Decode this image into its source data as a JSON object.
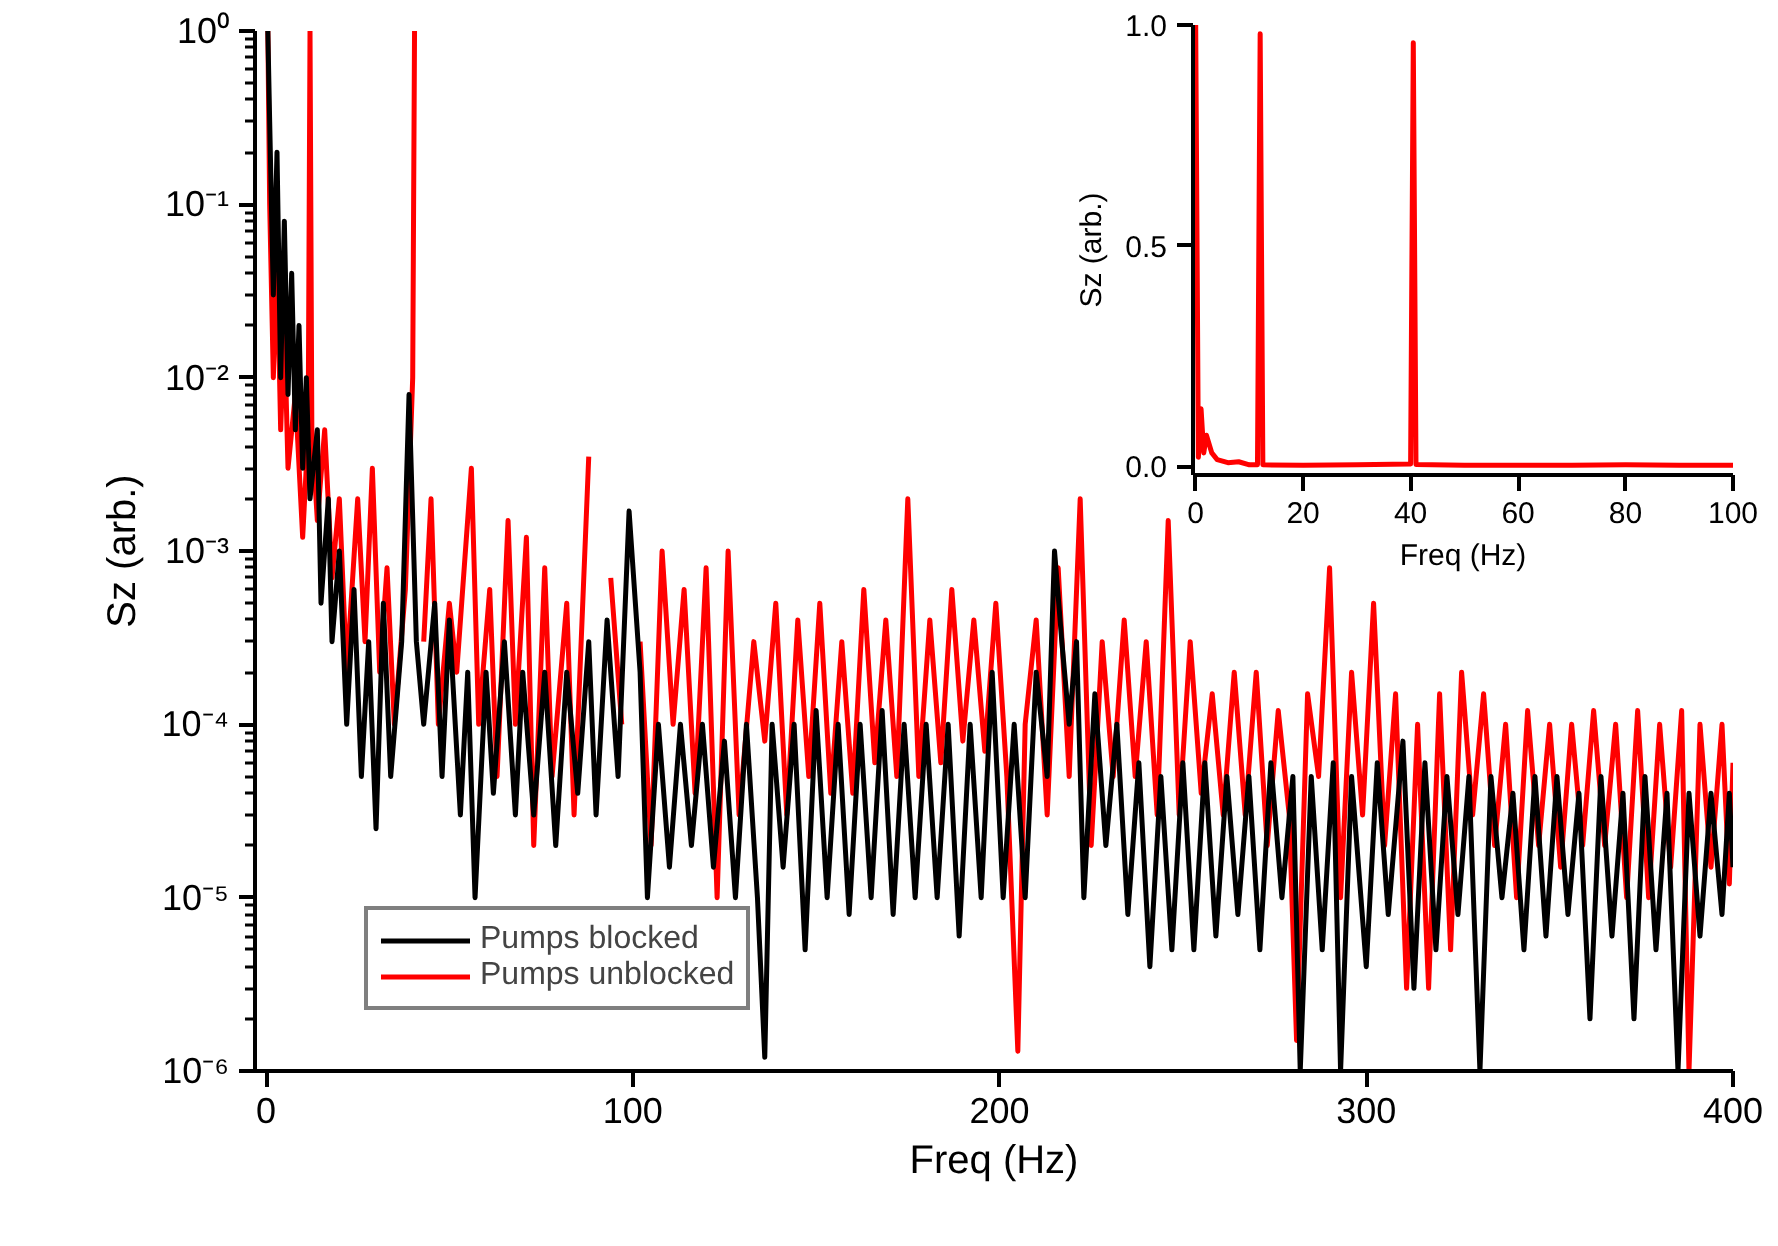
{
  "chart_data": [
    {
      "type": "line",
      "xlabel": "Freq (Hz)",
      "ylabel": "Sz (arb.)",
      "log": "y",
      "legend": "bottom left",
      "xlim": [
        -3,
        400
      ],
      "ylim": [
        1e-06,
        1
      ],
      "xticks": [
        0,
        100,
        200,
        300,
        400
      ],
      "yticks": [
        {
          "value": 1e-06,
          "label": "10⁻⁶"
        },
        {
          "value": 1e-05,
          "label": "10⁻⁵"
        },
        {
          "value": 0.0001,
          "label": "10⁻⁴"
        },
        {
          "value": 0.001,
          "label": "10⁻³"
        },
        {
          "value": 0.01,
          "label": "10⁻²"
        },
        {
          "value": 0.1,
          "label": "10⁻¹"
        },
        {
          "value": 1,
          "label": "10⁰"
        }
      ],
      "series": [
        {
          "name": "Pumps blocked",
          "color": "#000000",
          "x": [
            0.5,
            1,
            2,
            3,
            4,
            5,
            6,
            7,
            8,
            9,
            10,
            11,
            12,
            14,
            15,
            17,
            18,
            20,
            22,
            24,
            26,
            28,
            30,
            32,
            34,
            37,
            39,
            41,
            43,
            46,
            48,
            50,
            53,
            55,
            57,
            60,
            62,
            65,
            68,
            70,
            73,
            76,
            79,
            82,
            85,
            88,
            90,
            93,
            96,
            99,
            102,
            104,
            107,
            110,
            113,
            116,
            119,
            122,
            125,
            128,
            131,
            134,
            136,
            138,
            141,
            144,
            147,
            150,
            153,
            156,
            159,
            162,
            165,
            168,
            171,
            174,
            177,
            180,
            183,
            186,
            189,
            192,
            195,
            198,
            201,
            204,
            207,
            210,
            213,
            215,
            217,
            219,
            221,
            223,
            226,
            229,
            232,
            235,
            238,
            241,
            244,
            247,
            250,
            253,
            256,
            259,
            262,
            265,
            268,
            271,
            274,
            277,
            280,
            282,
            285,
            288,
            291,
            293,
            296,
            300,
            303,
            306,
            310,
            313,
            316,
            319,
            322,
            325,
            328,
            331,
            334,
            337,
            340,
            343,
            346,
            349,
            352,
            355,
            358,
            361,
            364,
            367,
            370,
            373,
            376,
            379,
            382,
            385,
            388,
            391,
            394,
            397,
            399,
            400
          ],
          "values": [
            1.0,
            0.3,
            0.03,
            0.2,
            0.01,
            0.08,
            0.008,
            0.04,
            0.005,
            0.02,
            0.003,
            0.01,
            0.002,
            0.005,
            0.0005,
            0.002,
            0.0003,
            0.001,
            0.0001,
            0.0006,
            5e-05,
            0.0003,
            2.5e-05,
            0.0005,
            5e-05,
            0.0003,
            0.008,
            0.0003,
            0.0001,
            0.0005,
            5e-05,
            0.0004,
            3e-05,
            0.0002,
            1e-05,
            0.0002,
            4e-05,
            0.0003,
            3e-05,
            0.0002,
            3e-05,
            0.0002,
            2e-05,
            0.0002,
            4e-05,
            0.0003,
            3e-05,
            0.0004,
            5e-05,
            0.0017,
            0.0002,
            1e-05,
            0.0001,
            1.5e-05,
            0.0001,
            2e-05,
            0.0001,
            1.5e-05,
            8e-05,
            1e-05,
            0.0001,
            1e-05,
            1.2e-06,
            0.0001,
            1.5e-05,
            0.0001,
            5e-06,
            0.00012,
            1e-05,
            0.0001,
            8e-06,
            0.0001,
            1e-05,
            0.00012,
            8e-06,
            0.0001,
            1e-05,
            0.0001,
            1e-05,
            0.0001,
            6e-06,
            0.0001,
            1e-05,
            0.0002,
            1e-05,
            0.0001,
            1e-05,
            0.0002,
            5e-05,
            0.001,
            0.0003,
            0.0001,
            0.0003,
            1e-05,
            0.00015,
            2e-05,
            0.0001,
            8e-06,
            6e-05,
            4e-06,
            5e-05,
            5e-06,
            6e-05,
            5e-06,
            6e-05,
            6e-06,
            5e-05,
            8e-06,
            5e-05,
            5e-06,
            6e-05,
            1e-05,
            5e-05,
            1e-06,
            5e-05,
            5e-06,
            6e-05,
            1e-06,
            5e-05,
            4e-06,
            6e-05,
            8e-06,
            8e-05,
            3e-06,
            6e-05,
            5e-06,
            5e-05,
            8e-06,
            5e-05,
            1e-06,
            5e-05,
            1e-05,
            4e-05,
            5e-06,
            5e-05,
            6e-06,
            5e-05,
            8e-06,
            4e-05,
            2e-06,
            5e-05,
            6e-06,
            4e-05,
            2e-06,
            5e-05,
            5e-06,
            4e-05,
            1e-06,
            4e-05,
            6e-06,
            4e-05,
            8e-06,
            4e-05,
            1.5e-05
          ]
        },
        {
          "name": "Pumps unblocked",
          "color": "#ff0000",
          "x": [
            0.5,
            1,
            2,
            3,
            4,
            5,
            6,
            8,
            10,
            11.5,
            12,
            12.5,
            14,
            16,
            18,
            20,
            22,
            25,
            27,
            29,
            31,
            33,
            35,
            38,
            40,
            40.5,
            41,
            43,
            45,
            47,
            50,
            52,
            56,
            58,
            61,
            63,
            66,
            68,
            71,
            73,
            76,
            78,
            82,
            84,
            88,
            90,
            94,
            97,
            99,
            102,
            105,
            108,
            111,
            114,
            117,
            120,
            123,
            126,
            129,
            133,
            136,
            139,
            142,
            145,
            148,
            151,
            154,
            157,
            160,
            163,
            166,
            169,
            172,
            175,
            178,
            181,
            184,
            187,
            190,
            193,
            196,
            199,
            202,
            205,
            207,
            210,
            213,
            216,
            219,
            222,
            225,
            228,
            231,
            234,
            237,
            240,
            243,
            246,
            249,
            252,
            255,
            258,
            261,
            264,
            267,
            270,
            273,
            276,
            279,
            281,
            284,
            287,
            290,
            293,
            296,
            299,
            302,
            305,
            308,
            311,
            314,
            317,
            320,
            323,
            326,
            329,
            332,
            335,
            338,
            341,
            344,
            347,
            350,
            353,
            356,
            359,
            362,
            365,
            368,
            371,
            374,
            377,
            380,
            383,
            386,
            388,
            391,
            394,
            397,
            399,
            400
          ],
          "values": [
            1.0,
            0.1,
            0.01,
            0.05,
            0.005,
            0.02,
            0.003,
            0.008,
            0.0012,
            0.005,
            1.0,
            0.005,
            0.0015,
            0.005,
            0.0007,
            0.002,
            0.0002,
            0.002,
            0.0003,
            0.003,
            0.0002,
            0.0008,
            0.0001,
            0.0006,
            0.01,
            1.0,
            null,
            0.0003,
            0.002,
            0.0001,
            0.0005,
            0.0002,
            0.003,
            0.0001,
            0.0006,
            5e-05,
            0.0015,
            0.0001,
            0.0012,
            2e-05,
            0.0008,
            5e-05,
            0.0005,
            3e-05,
            0.0035,
            null,
            0.0007,
            0.0001,
            null,
            0.0003,
            2e-05,
            0.001,
            0.0001,
            0.0006,
            4e-05,
            0.0008,
            1e-05,
            0.001,
            3e-05,
            0.0003,
            8e-05,
            0.0005,
            3e-05,
            0.0004,
            5e-05,
            0.0005,
            4e-05,
            0.0003,
            4e-05,
            0.0006,
            6e-05,
            0.0004,
            5e-05,
            0.002,
            5e-05,
            0.0004,
            6e-05,
            0.0006,
            8e-05,
            0.0004,
            7e-05,
            0.0005,
            5e-05,
            1.3e-06,
            0.0001,
            0.0004,
            3e-05,
            0.0008,
            5e-05,
            0.002,
            2e-05,
            0.0003,
            5e-05,
            0.0004,
            5e-05,
            0.0003,
            3e-05,
            0.0015,
            3e-05,
            0.0003,
            4e-05,
            0.00015,
            3e-05,
            0.0002,
            3e-05,
            0.0002,
            2e-05,
            0.00012,
            3e-05,
            1.5e-06,
            0.00015,
            5e-05,
            0.0008,
            1e-05,
            0.0002,
            3e-05,
            0.0005,
            2e-05,
            0.00015,
            3e-06,
            0.0001,
            3e-06,
            0.00015,
            5e-06,
            0.0002,
            3e-05,
            0.00015,
            2e-05,
            0.0001,
            1e-05,
            0.00012,
            2e-05,
            0.0001,
            1.5e-05,
            0.0001,
            2e-05,
            0.00012,
            2e-05,
            0.0001,
            1e-05,
            0.00012,
            1e-05,
            0.0001,
            1.5e-05,
            0.00012,
            1e-06,
            0.0001,
            1.5e-05,
            0.0001,
            1.2e-05,
            6e-05
          ]
        }
      ]
    },
    {
      "type": "line",
      "xlabel": "Freq (Hz)",
      "ylabel": "Sz (arb.)",
      "xlim": [
        -0.5,
        100
      ],
      "ylim": [
        -0.02,
        1.0
      ],
      "xticks": [
        0,
        20,
        40,
        60,
        80,
        100
      ],
      "yticks": [
        {
          "value": 0,
          "label": "0.0"
        },
        {
          "value": 0.5,
          "label": "0.5"
        },
        {
          "value": 1.0,
          "label": "1.0"
        }
      ],
      "series": [
        {
          "color": "#ff0000",
          "x": [
            0,
            0.5,
            1,
            1.5,
            2,
            3,
            4,
            6,
            8,
            10,
            11.5,
            12,
            12.5,
            20,
            30,
            40,
            40.5,
            41,
            50,
            60,
            70,
            80,
            90,
            100
          ],
          "values": [
            1.0,
            0.02,
            0.13,
            0.03,
            0.07,
            0.03,
            0.015,
            0.008,
            0.01,
            0.003,
            0.003,
            0.98,
            0.003,
            0.002,
            0.003,
            0.005,
            0.96,
            0.004,
            0.002,
            0.002,
            0.002,
            0.003,
            0.002,
            0.002
          ]
        }
      ]
    }
  ]
}
